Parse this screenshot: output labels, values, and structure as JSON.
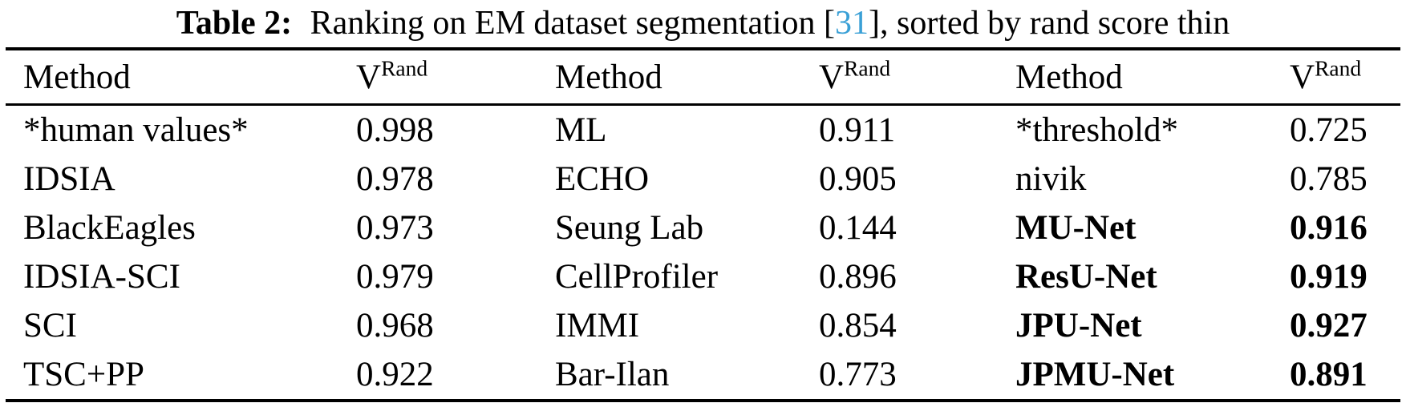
{
  "title": {
    "label": "Table 2:",
    "body": " Ranking on EM dataset segmentation ",
    "bracket_open": "[",
    "citation": "31",
    "bracket_close": "]",
    "tail": ", sorted by rand score thin",
    "citation_color": "#3AA0D6"
  },
  "table": {
    "header": {
      "method": "Method",
      "score_base": "V",
      "score_superscript": "Rand"
    },
    "rows": [
      {
        "m1": "*human values*",
        "v1": "0.998",
        "m2": "ML",
        "v2": "0.911",
        "m3": "*threshold*",
        "v3": "0.725",
        "group3_bold": false
      },
      {
        "m1": "IDSIA",
        "v1": "0.978",
        "m2": "ECHO",
        "v2": "0.905",
        "m3": "nivik",
        "v3": "0.785",
        "group3_bold": false
      },
      {
        "m1": "BlackEagles",
        "v1": "0.973",
        "m2": "Seung Lab",
        "v2": "0.144",
        "m3": "MU-Net",
        "v3": "0.916",
        "group3_bold": true
      },
      {
        "m1": "IDSIA-SCI",
        "v1": "0.979",
        "m2": "CellProfiler",
        "v2": "0.896",
        "m3": "ResU-Net",
        "v3": "0.919",
        "group3_bold": true
      },
      {
        "m1": "SCI",
        "v1": "0.968",
        "m2": "IMMI",
        "v2": "0.854",
        "m3": "JPU-Net",
        "v3": "0.927",
        "group3_bold": true
      },
      {
        "m1": "TSC+PP",
        "v1": "0.922",
        "m2": "Bar-Ilan",
        "v2": "0.773",
        "m3": "JPMU-Net",
        "v3": "0.891",
        "group3_bold": true
      }
    ]
  }
}
